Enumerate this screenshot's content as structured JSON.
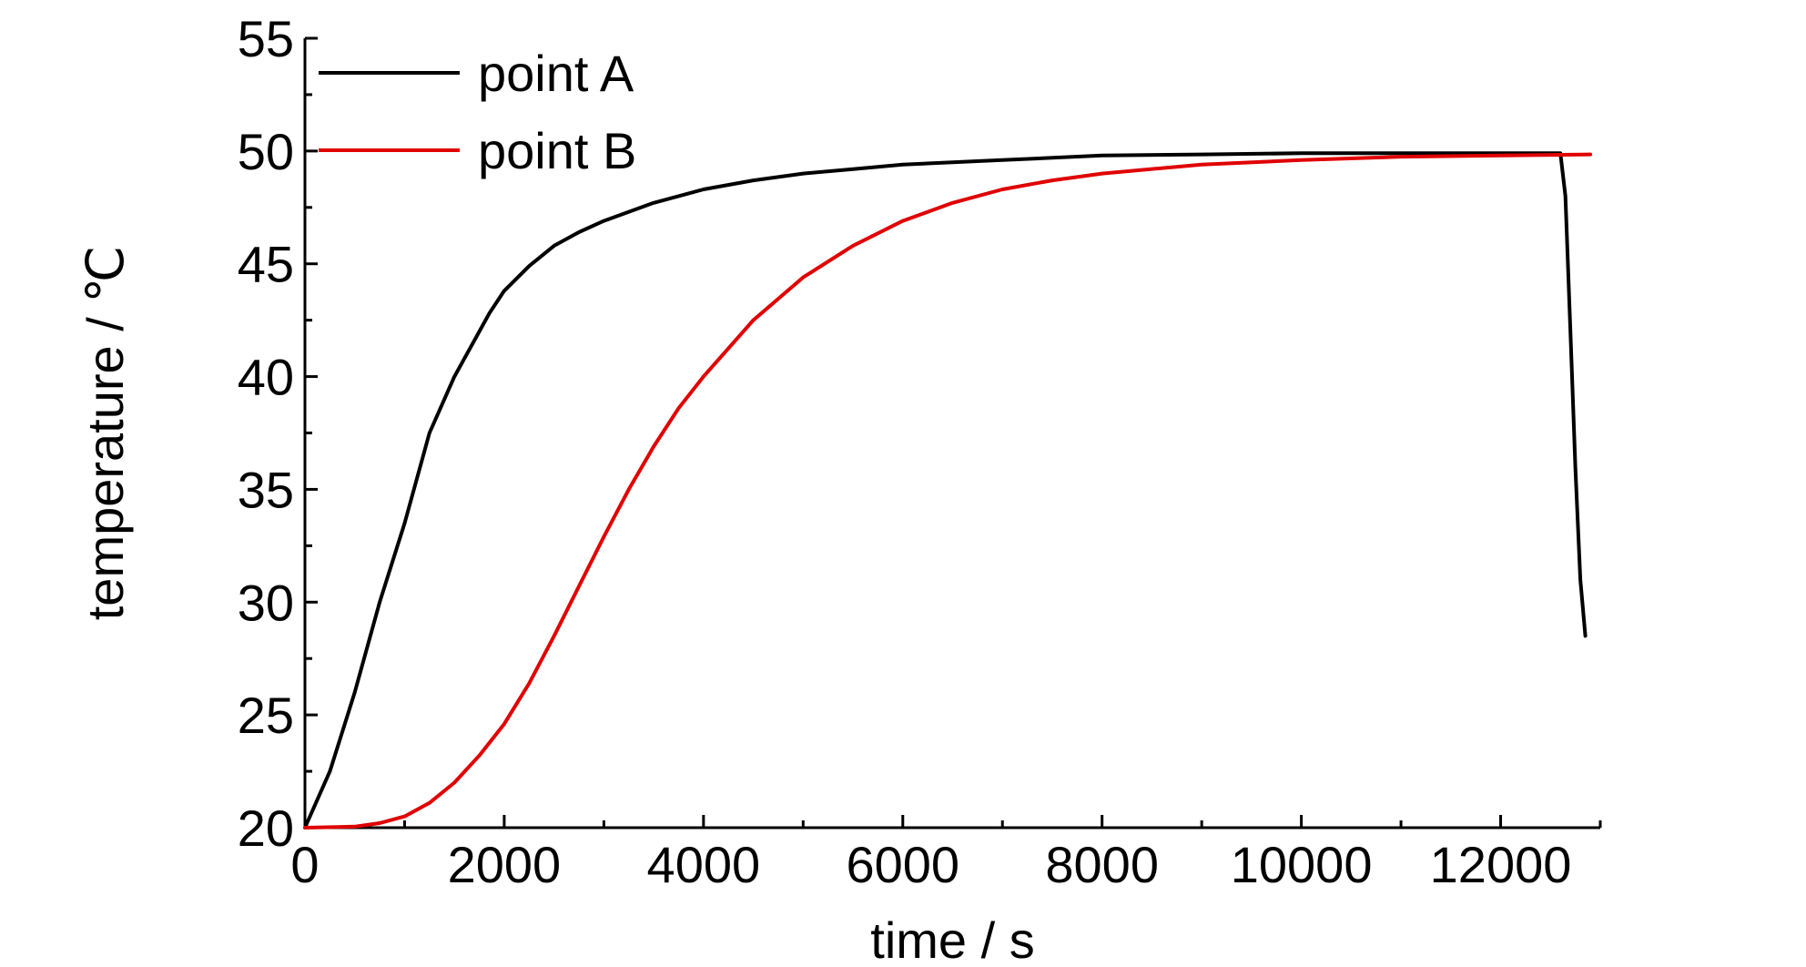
{
  "chart_data": {
    "type": "line",
    "title": "",
    "xlabel": "time / s",
    "ylabel": "temperature / ℃",
    "xlim": [
      0,
      13000
    ],
    "ylim": [
      20,
      55
    ],
    "xticks": [
      0,
      2000,
      4000,
      6000,
      8000,
      10000,
      12000
    ],
    "yticks": [
      20,
      25,
      30,
      35,
      40,
      45,
      50,
      55
    ],
    "grid": false,
    "legend_position": "top-left",
    "series": [
      {
        "name": "point A",
        "color": "#000000",
        "x": [
          0,
          250,
          500,
          750,
          1000,
          1250,
          1500,
          1750,
          1850,
          2000,
          2250,
          2500,
          2750,
          3000,
          3500,
          4000,
          4500,
          5000,
          5500,
          6000,
          7000,
          8000,
          9000,
          10000,
          11000,
          12000,
          12600,
          12650,
          12700,
          12750,
          12800,
          12850
        ],
        "y": [
          20.0,
          22.5,
          26.0,
          30.0,
          33.5,
          37.5,
          40.0,
          42.0,
          42.8,
          43.8,
          44.9,
          45.8,
          46.4,
          46.9,
          47.7,
          48.3,
          48.7,
          49.0,
          49.2,
          49.4,
          49.6,
          49.8,
          49.85,
          49.9,
          49.9,
          49.9,
          49.9,
          48.0,
          42.0,
          36.0,
          31.0,
          28.5
        ]
      },
      {
        "name": "point B",
        "color": "#e00000",
        "x": [
          0,
          500,
          750,
          1000,
          1250,
          1500,
          1750,
          2000,
          2250,
          2500,
          2750,
          3000,
          3250,
          3500,
          3750,
          4000,
          4500,
          5000,
          5500,
          6000,
          6500,
          7000,
          7500,
          8000,
          9000,
          10000,
          11000,
          12000,
          12900
        ],
        "y": [
          20.0,
          20.05,
          20.2,
          20.5,
          21.1,
          22.0,
          23.2,
          24.6,
          26.4,
          28.5,
          30.7,
          32.9,
          35.0,
          36.9,
          38.6,
          40.0,
          42.5,
          44.4,
          45.8,
          46.9,
          47.7,
          48.3,
          48.7,
          49.0,
          49.4,
          49.6,
          49.75,
          49.8,
          49.85
        ]
      }
    ]
  }
}
